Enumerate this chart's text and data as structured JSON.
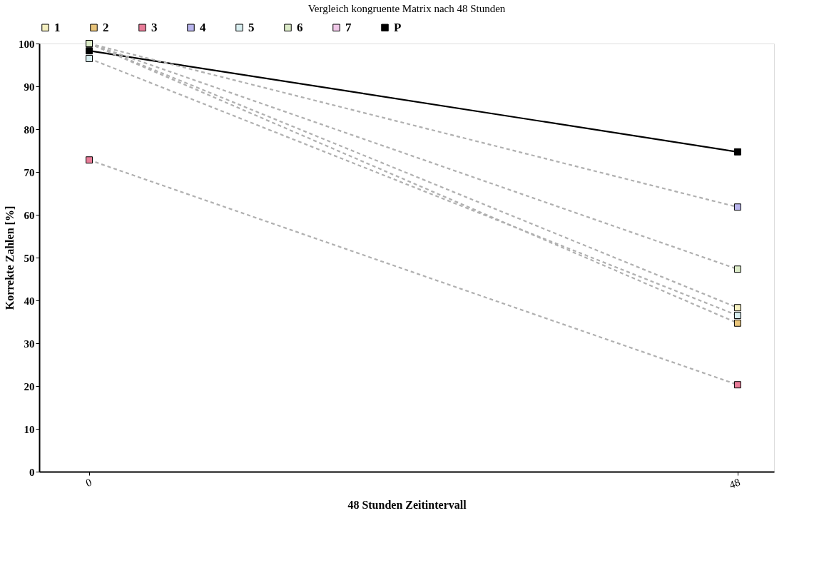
{
  "chart_data": {
    "type": "line",
    "title": "Vergleich kongruente Matrix nach 48 Stunden",
    "xlabel": "48 Stunden Zeitintervall",
    "ylabel": "Korrekte Zahlen [%]",
    "x": [
      0,
      48
    ],
    "xlim": [
      -3.7,
      50.7
    ],
    "xticks": [
      0,
      48
    ],
    "ylim": [
      0,
      100
    ],
    "yticks": [
      0,
      10,
      20,
      30,
      40,
      50,
      60,
      70,
      80,
      90,
      100
    ],
    "grid": false,
    "legend": "top",
    "marker": "square",
    "series": [
      {
        "name": "1",
        "color": "#f5f0c0",
        "line_style": "dashed",
        "values": [
          100,
          38.3
        ]
      },
      {
        "name": "2",
        "color": "#e8c47a",
        "line_style": "dashed",
        "values": [
          100,
          34.7
        ]
      },
      {
        "name": "3",
        "color": "#e87c98",
        "line_style": "dashed",
        "values": [
          72.8,
          20.3
        ]
      },
      {
        "name": "4",
        "color": "#b8b4ec",
        "line_style": "dashed",
        "values": [
          100,
          61.8
        ]
      },
      {
        "name": "5",
        "color": "#d8eef0",
        "line_style": "dashed",
        "values": [
          96.5,
          36.5
        ]
      },
      {
        "name": "6",
        "color": "#dcebc8",
        "line_style": "dashed",
        "values": [
          100,
          47.3
        ]
      },
      {
        "name": "7",
        "color": "#f0c8e8",
        "line_style": "dashed",
        "values": [
          null,
          null
        ]
      },
      {
        "name": "P",
        "color": "#000000",
        "line_style": "solid",
        "values": [
          98.3,
          74.7
        ]
      }
    ]
  }
}
